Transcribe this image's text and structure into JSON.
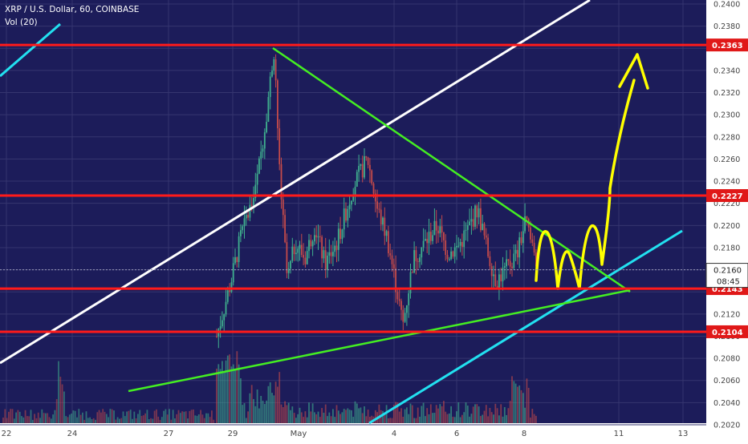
{
  "header": {
    "symbol_line": "XRP / U.S. Dollar, 60, COINBASE",
    "volume_label": "Vol (20)"
  },
  "colors": {
    "plot_bg": "#1c1c5a",
    "price_axis_bg": "#ffffff",
    "level_line": "#ff1a1a",
    "upper_channel": "#ffffff",
    "lower_channel": "#22e0f0",
    "triangle_lines": "#44ee22",
    "projection": "#ffff00",
    "candle_up": "#3fb08e",
    "candle_down": "#c44a4a"
  },
  "chart_data": {
    "type": "candlestick",
    "y_axis": {
      "range": [
        0.202,
        0.24
      ],
      "ticks": [
        "0.2400",
        "0.2380",
        "0.2360",
        "0.2340",
        "0.2320",
        "0.2300",
        "0.2280",
        "0.2260",
        "0.2240",
        "0.2220",
        "0.2200",
        "0.2180",
        "0.2160",
        "0.2140",
        "0.2120",
        "0.2100",
        "0.2080",
        "0.2060",
        "0.2040",
        "0.2020"
      ]
    },
    "x_axis": {
      "ticks": [
        "22",
        "24",
        "27",
        "29",
        "May",
        "4",
        "6",
        "8",
        "11",
        "13"
      ]
    },
    "grid": true,
    "price_levels": [
      {
        "label": "0.2363",
        "value": 0.2363
      },
      {
        "label": "0.2227",
        "value": 0.2227
      },
      {
        "label": "0.2143",
        "value": 0.2143
      },
      {
        "label": "0.2104",
        "value": 0.2104
      }
    ],
    "current_price": {
      "label": "0.2160",
      "value": 0.216,
      "countdown": "08:45"
    },
    "candles": {
      "x_range": [
        "27",
        "8"
      ],
      "approx_path": [
        {
          "x": "27",
          "close": 0.21
        },
        {
          "x": "29",
          "close": 0.215
        },
        {
          "x": "29",
          "close": 0.227
        },
        {
          "x": "29",
          "close": 0.2362
        },
        {
          "x": "May",
          "close": 0.217
        },
        {
          "x": "May",
          "close": 0.219
        },
        {
          "x": "4",
          "close": 0.2265
        },
        {
          "x": "4",
          "close": 0.213
        },
        {
          "x": "4",
          "close": 0.2105
        },
        {
          "x": "6",
          "close": 0.2195
        },
        {
          "x": "6",
          "close": 0.217
        },
        {
          "x": "8",
          "close": 0.222
        },
        {
          "x": "8",
          "close": 0.215
        },
        {
          "x": "8",
          "close": 0.216
        }
      ]
    }
  }
}
